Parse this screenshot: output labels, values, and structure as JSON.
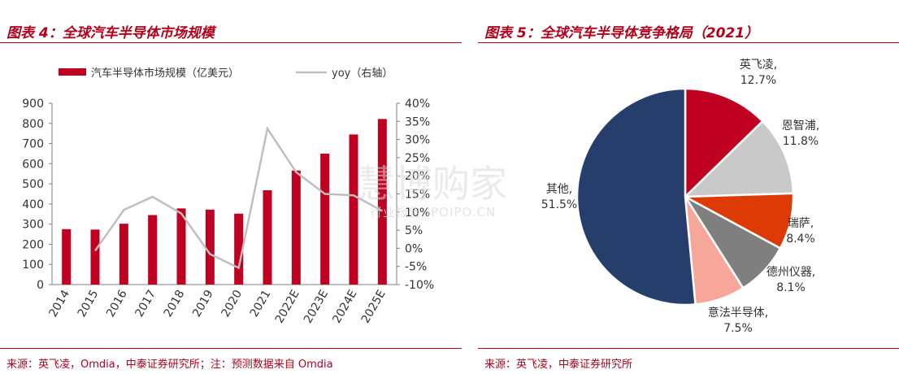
{
  "left": {
    "title": "图表 4：全球汽车半导体市场规模",
    "source": "来源：英飞凌，Omdia，中泰证券研究所；注：预测数据来自 Omdia"
  },
  "right": {
    "title": "图表 5：全球汽车半导体竞争格局（2021）",
    "source": "来源：英飞凌，中泰证券研究所"
  },
  "watermark": {
    "main": "慧博购家",
    "sub": "行业报告 IPOIPO.CN"
  },
  "chart_data": [
    {
      "type": "bar",
      "categories": [
        "2014",
        "2015",
        "2016",
        "2017",
        "2018",
        "2019",
        "2020",
        "2021",
        "2022E",
        "2023E",
        "2024E",
        "2025E"
      ],
      "series": [
        {
          "name": "汽车半导体市场规模（亿美元）",
          "type": "bar",
          "axis": "left",
          "values": [
            275,
            273,
            302,
            345,
            378,
            372,
            352,
            468,
            566,
            650,
            745,
            822
          ]
        },
        {
          "name": "yoy（右轴）",
          "type": "line",
          "axis": "right",
          "values": [
            null,
            -0.7,
            10.6,
            14.2,
            9.6,
            -1.6,
            -5.4,
            33.0,
            21.0,
            15.0,
            14.6,
            10.3
          ]
        }
      ],
      "y_left": {
        "min": 0,
        "max": 900,
        "step": 100,
        "ticks": [
          "0",
          "100",
          "200",
          "300",
          "400",
          "500",
          "600",
          "700",
          "800",
          "900"
        ]
      },
      "y_right": {
        "min": -10,
        "max": 40,
        "step": 5,
        "ticks": [
          "-10%",
          "-5%",
          "0%",
          "5%",
          "10%",
          "15%",
          "20%",
          "25%",
          "30%",
          "35%",
          "40%"
        ]
      },
      "legend_position": "top",
      "colors": {
        "bar": "#c00020",
        "line": "#bfbfbf"
      },
      "grid": false
    },
    {
      "type": "pie",
      "slices": [
        {
          "name": "英飞凌,",
          "value": 12.7,
          "label": "12.7%",
          "color": "#c00020"
        },
        {
          "name": "恩智浦,",
          "value": 11.8,
          "label": "11.8%",
          "color": "#c9c9c9"
        },
        {
          "name": "瑞萨,",
          "value": 8.4,
          "label": "8.4%",
          "color": "#dd3a05"
        },
        {
          "name": "德州仪器,",
          "value": 8.1,
          "label": "8.1%",
          "color": "#7f7f7f"
        },
        {
          "name": "意法半导体,",
          "value": 7.5,
          "label": "7.5%",
          "color": "#f7a79a"
        },
        {
          "name": "其他,",
          "value": 51.5,
          "label": "51.5%",
          "color": "#253e6c"
        }
      ],
      "start_angle": "12 o'clock",
      "direction": "clockwise"
    }
  ]
}
